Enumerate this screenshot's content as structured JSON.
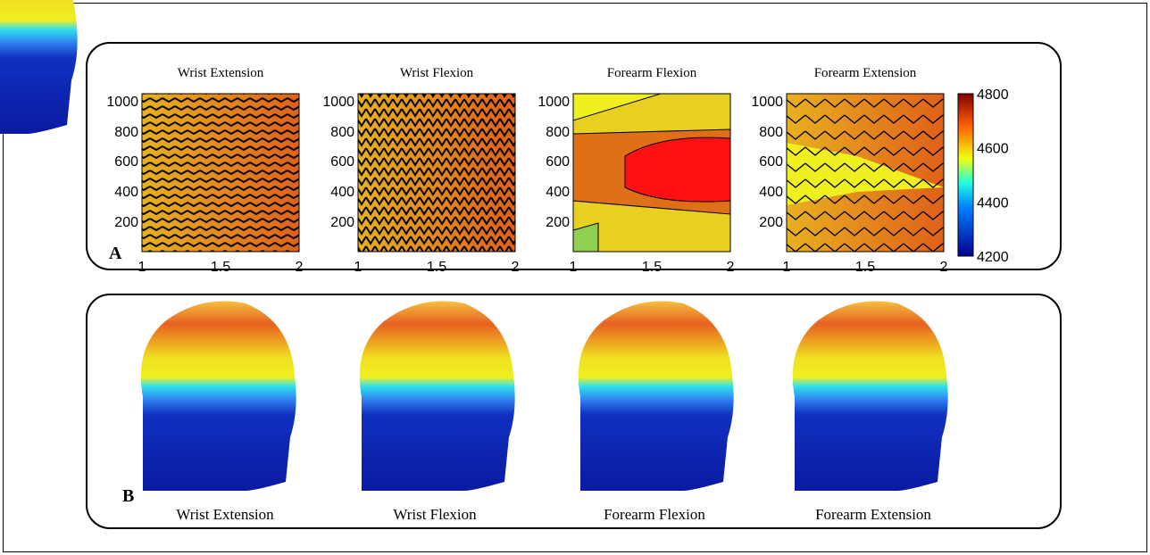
{
  "panel_a": {
    "label": "A",
    "titles": [
      "Wrist Extension",
      "Wrist Flexion",
      "Forearm Flexion",
      "Forearm Extension"
    ],
    "y_ticks": [
      "1000",
      "800",
      "600",
      "400",
      "200"
    ],
    "x_ticks": [
      "1",
      "1.5",
      "2"
    ],
    "colorbar_ticks": [
      "4800",
      "4600",
      "4400",
      "4200"
    ]
  },
  "panel_b": {
    "label": "B",
    "captions": [
      "Wrist Extension",
      "Wrist Flexion",
      "Forearm Flexion",
      "Forearm Extension"
    ]
  }
}
